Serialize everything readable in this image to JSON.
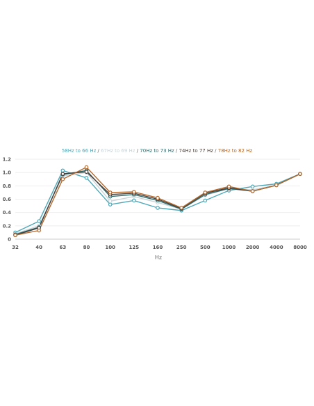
{
  "chart_data": {
    "type": "line",
    "xlabel": "Hz",
    "ylabel": "",
    "title": "",
    "ylim": [
      0,
      1.2
    ],
    "yticks": [
      "0",
      "0.2",
      "0.4",
      "0.6",
      "0.8",
      "1.0",
      "1.2"
    ],
    "categories": [
      "32",
      "40",
      "63",
      "80",
      "100",
      "125",
      "160",
      "250",
      "500",
      "1000",
      "2000",
      "4000",
      "8000"
    ],
    "grid": true,
    "legend_position": "top",
    "series": [
      {
        "name": "58Hz to 66 Hz",
        "color": "#4fa8b8",
        "values": [
          0.1,
          0.27,
          1.03,
          0.92,
          0.52,
          0.58,
          0.47,
          0.43,
          0.58,
          0.73,
          0.79,
          0.83,
          0.98
        ]
      },
      {
        "name": "67Hz to 69 Hz",
        "color": "#c9d4d8",
        "values": [
          0.08,
          0.2,
          0.95,
          1.0,
          0.57,
          0.64,
          0.55,
          0.45,
          0.66,
          0.76,
          0.74,
          0.81,
          0.98
        ]
      },
      {
        "name": "70Hz to 73 Hz",
        "color": "#2e6b6b",
        "values": [
          0.07,
          0.18,
          0.97,
          1.03,
          0.64,
          0.67,
          0.58,
          0.45,
          0.67,
          0.76,
          0.72,
          0.81,
          0.98
        ]
      },
      {
        "name": "74Hz to 77 Hz",
        "color": "#4a3f3a",
        "values": [
          0.06,
          0.17,
          0.98,
          1.01,
          0.67,
          0.69,
          0.6,
          0.46,
          0.69,
          0.77,
          0.72,
          0.81,
          0.98
        ]
      },
      {
        "name": "78Hz to 82 Hz",
        "color": "#b3692e",
        "values": [
          0.06,
          0.13,
          0.9,
          1.08,
          0.7,
          0.71,
          0.62,
          0.47,
          0.7,
          0.79,
          0.72,
          0.81,
          0.98
        ]
      }
    ]
  }
}
